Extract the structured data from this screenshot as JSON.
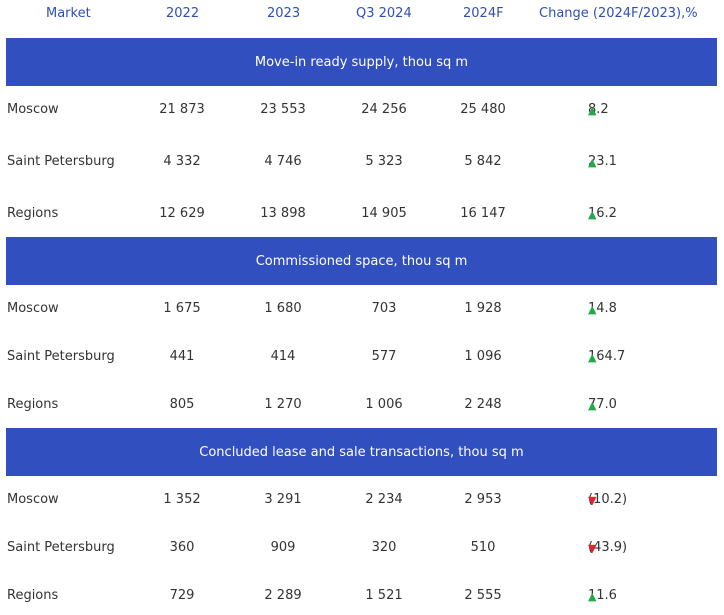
{
  "header": {
    "market": "Market",
    "y2022": "2022",
    "y2023": "2023",
    "q3_2024": "Q3 2024",
    "f2024": "2024F",
    "change": "Change (2024F/2023),%"
  },
  "sections": [
    {
      "title": "Move-in ready supply, thou sq m",
      "rows": [
        {
          "market": "Moscow",
          "y2022": "21 873",
          "y2023": "23 553",
          "q3_2024": "24 256",
          "f2024": "25 480",
          "change": "8.2",
          "dir": "up"
        },
        {
          "market": "Saint Petersburg",
          "y2022": "4 332",
          "y2023": "4 746",
          "q3_2024": "5 323",
          "f2024": "5 842",
          "change": "23.1",
          "dir": "up"
        },
        {
          "market": "Regions",
          "y2022": "12 629",
          "y2023": "13 898",
          "q3_2024": "14 905",
          "f2024": "16 147",
          "change": "16.2",
          "dir": "up"
        }
      ]
    },
    {
      "title": "Commissioned space, thou sq m",
      "rows": [
        {
          "market": "Moscow",
          "y2022": "1 675",
          "y2023": "1 680",
          "q3_2024": "703",
          "f2024": "1 928",
          "change": "14.8",
          "dir": "up"
        },
        {
          "market": "Saint Petersburg",
          "y2022": "441",
          "y2023": "414",
          "q3_2024": "577",
          "f2024": "1 096",
          "change": "164.7",
          "dir": "up"
        },
        {
          "market": "Regions",
          "y2022": "805",
          "y2023": "1 270",
          "q3_2024": "1 006",
          "f2024": "2 248",
          "change": "77.0",
          "dir": "up"
        }
      ]
    },
    {
      "title": "Concluded lease and sale transactions, thou sq m",
      "rows": [
        {
          "market": "Moscow",
          "y2022": "1 352",
          "y2023": "3 291",
          "q3_2024": "2 234",
          "f2024": "2 953",
          "change": "(10.2)",
          "dir": "down"
        },
        {
          "market": "Saint Petersburg",
          "y2022": "360",
          "y2023": "909",
          "q3_2024": "320",
          "f2024": "510",
          "change": "(43.9)",
          "dir": "down"
        },
        {
          "market": "Regions",
          "y2022": "729",
          "y2023": "2 289",
          "q3_2024": "1 521",
          "f2024": "2 555",
          "change": "11.6",
          "dir": "up"
        }
      ]
    }
  ],
  "colors": {
    "band": "#324fbf",
    "header_text": "#2e4fb8",
    "up": "#23a84a",
    "down": "#e0232f"
  },
  "icons": {
    "up": "triangle-up-icon",
    "down": "triangle-down-icon"
  }
}
